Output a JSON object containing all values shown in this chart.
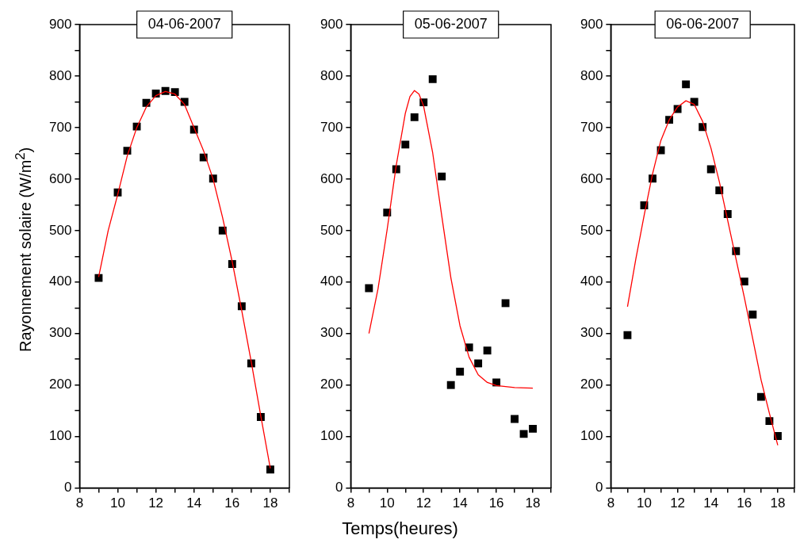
{
  "chart_data": [
    {
      "type": "scatter",
      "title": "04-06-2007",
      "ylabel": "Rayonnement solaire (W/m$^{2}$)",
      "xlim": [
        8,
        19
      ],
      "ylim": [
        0,
        900
      ],
      "marker": "square",
      "grid": false,
      "legend": false,
      "xticks": [
        8,
        {
          "value": 9,
          "label": null
        },
        10,
        {
          "value": 11,
          "label": null
        },
        12,
        {
          "value": 13,
          "label": null
        },
        14,
        {
          "value": 15,
          "label": null
        },
        16,
        {
          "value": 17,
          "label": null
        },
        18,
        {
          "value": 19,
          "label": null
        }
      ],
      "yticks": [
        0,
        {
          "value": 50,
          "label": null
        },
        100,
        {
          "value": 150,
          "label": null
        },
        200,
        {
          "value": 250,
          "label": null
        },
        300,
        {
          "value": 350,
          "label": null
        },
        400,
        {
          "value": 450,
          "label": null
        },
        500,
        {
          "value": 550,
          "label": null
        },
        600,
        {
          "value": 650,
          "label": null
        },
        700,
        {
          "value": 750,
          "label": null
        },
        800,
        {
          "value": 850,
          "label": null
        },
        900
      ],
      "series": [
        {
          "type": "scatter",
          "color": "#000000",
          "x": [
            9,
            10,
            10.5,
            11,
            11.5,
            12,
            12.5,
            13,
            13.5,
            14,
            14.5,
            15,
            15.5,
            16,
            16.5,
            17,
            17.5,
            18
          ],
          "values": [
            408,
            574,
            655,
            702,
            748,
            766,
            771,
            769,
            750,
            696,
            642,
            601,
            500,
            435,
            353,
            242,
            138,
            36
          ]
        },
        {
          "type": "line",
          "color": "#ff0000",
          "marker": "none",
          "x": [
            9,
            9.5,
            10,
            10.5,
            11,
            11.5,
            12,
            12.5,
            13,
            13.5,
            14,
            14.5,
            15,
            15.5,
            16,
            16.5,
            17,
            17.5,
            18
          ],
          "values": [
            410,
            500,
            570,
            645,
            700,
            740,
            762,
            770,
            765,
            745,
            700,
            655,
            600,
            525,
            440,
            345,
            245,
            140,
            38
          ]
        }
      ]
    },
    {
      "type": "scatter",
      "title": "05-06-2007",
      "xlabel": "Temps(heures)",
      "xlim": [
        8,
        19
      ],
      "ylim": [
        0,
        900
      ],
      "marker": "square",
      "grid": false,
      "legend": false,
      "xticks": [
        8,
        {
          "value": 9,
          "label": null
        },
        10,
        {
          "value": 11,
          "label": null
        },
        12,
        {
          "value": 13,
          "label": null
        },
        14,
        {
          "value": 15,
          "label": null
        },
        16,
        {
          "value": 17,
          "label": null
        },
        18,
        {
          "value": 19,
          "label": null
        }
      ],
      "yticks": [
        0,
        {
          "value": 50,
          "label": null
        },
        100,
        {
          "value": 150,
          "label": null
        },
        200,
        {
          "value": 250,
          "label": null
        },
        300,
        {
          "value": 350,
          "label": null
        },
        400,
        {
          "value": 450,
          "label": null
        },
        500,
        {
          "value": 550,
          "label": null
        },
        600,
        {
          "value": 650,
          "label": null
        },
        700,
        {
          "value": 750,
          "label": null
        },
        800,
        {
          "value": 850,
          "label": null
        },
        900
      ],
      "series": [
        {
          "type": "scatter",
          "color": "#000000",
          "x": [
            9,
            10,
            10.5,
            11,
            11.5,
            12,
            12.5,
            13,
            13.5,
            14,
            14.5,
            15,
            15.5,
            16,
            16.5,
            17,
            17.5,
            18
          ],
          "values": [
            388,
            535,
            619,
            667,
            720,
            749,
            794,
            605,
            200,
            226,
            273,
            242,
            267,
            205,
            359,
            134,
            105,
            115
          ]
        },
        {
          "type": "line",
          "color": "#ff0000",
          "marker": "none",
          "x": [
            9,
            9.5,
            10,
            10.5,
            11,
            11.25,
            11.5,
            11.75,
            12,
            12.5,
            13,
            13.5,
            14,
            14.5,
            15,
            15.5,
            16,
            17,
            18
          ],
          "values": [
            300,
            387,
            502,
            627,
            728,
            760,
            772,
            765,
            742,
            651,
            528,
            408,
            315,
            254,
            220,
            205,
            199,
            195,
            194
          ]
        }
      ]
    },
    {
      "type": "scatter",
      "title": "06-06-2007",
      "xlim": [
        8,
        19
      ],
      "ylim": [
        0,
        900
      ],
      "marker": "square",
      "grid": false,
      "legend": false,
      "xticks": [
        8,
        {
          "value": 9,
          "label": null
        },
        10,
        {
          "value": 11,
          "label": null
        },
        12,
        {
          "value": 13,
          "label": null
        },
        14,
        {
          "value": 15,
          "label": null
        },
        16,
        {
          "value": 17,
          "label": null
        },
        18,
        {
          "value": 19,
          "label": null
        }
      ],
      "yticks": [
        0,
        {
          "value": 50,
          "label": null
        },
        100,
        {
          "value": 150,
          "label": null
        },
        200,
        {
          "value": 250,
          "label": null
        },
        300,
        {
          "value": 350,
          "label": null
        },
        400,
        {
          "value": 450,
          "label": null
        },
        500,
        {
          "value": 550,
          "label": null
        },
        600,
        {
          "value": 650,
          "label": null
        },
        700,
        {
          "value": 750,
          "label": null
        },
        800,
        {
          "value": 850,
          "label": null
        },
        900
      ],
      "series": [
        {
          "type": "scatter",
          "color": "#000000",
          "x": [
            9,
            10,
            10.5,
            11,
            11.5,
            12,
            12.5,
            13,
            13.5,
            14,
            14.5,
            15,
            15.5,
            16,
            16.5,
            17,
            17.5,
            18
          ],
          "values": [
            297,
            549,
            601,
            656,
            715,
            736,
            784,
            750,
            701,
            619,
            578,
            532,
            460,
            401,
            337,
            177,
            130,
            101
          ]
        },
        {
          "type": "line",
          "color": "#ff0000",
          "marker": "none",
          "x": [
            9,
            9.5,
            10,
            10.5,
            11,
            11.5,
            12,
            12.5,
            13,
            13.5,
            14,
            14.5,
            15,
            15.5,
            16,
            16.5,
            17,
            17.5,
            18
          ],
          "values": [
            352,
            445,
            530,
            610,
            675,
            715,
            740,
            752,
            745,
            712,
            660,
            595,
            520,
            445,
            370,
            290,
            210,
            145,
            83
          ]
        }
      ]
    }
  ]
}
